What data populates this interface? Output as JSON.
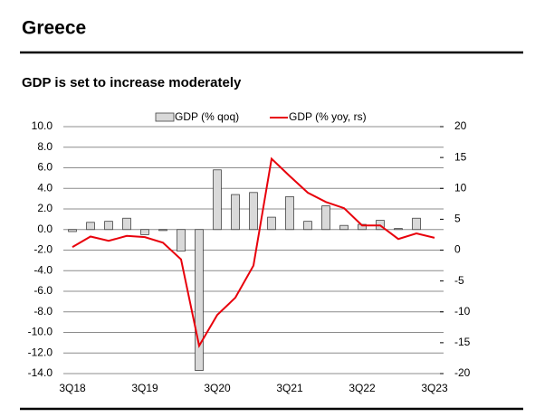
{
  "page": {
    "title": "Greece"
  },
  "chart_data": {
    "type": "bar",
    "title": "GDP is set to increase moderately",
    "categories": [
      "3Q18",
      null,
      null,
      null,
      "3Q19",
      null,
      null,
      null,
      "3Q20",
      null,
      null,
      null,
      "3Q21",
      null,
      null,
      null,
      "3Q22",
      null,
      null,
      null,
      "3Q23"
    ],
    "series": [
      {
        "name": "GDP (% qoq)",
        "type": "bar",
        "color": "#d9d9d9",
        "stroke": "#404040",
        "values": [
          -0.2,
          0.7,
          0.8,
          1.1,
          -0.5,
          -0.1,
          -2.1,
          -13.7,
          5.8,
          3.4,
          3.6,
          1.2,
          3.2,
          0.8,
          2.3,
          0.4,
          0.5,
          0.9,
          0.1,
          1.1,
          null
        ]
      },
      {
        "name": "GDP (% yoy, rs)",
        "type": "line",
        "axis": "y2",
        "color": "#e8000b",
        "values": [
          0.5,
          2.2,
          1.5,
          2.3,
          2.1,
          1.2,
          -1.5,
          -15.5,
          -10.5,
          -7.7,
          -2.5,
          14.8,
          12.0,
          9.3,
          7.8,
          6.8,
          4.0,
          4.0,
          1.8,
          2.7,
          2.0
        ]
      }
    ],
    "ylim": [
      -14,
      10
    ],
    "yticks": [
      {
        "value": 10,
        "label": "10.0"
      },
      {
        "value": 8,
        "label": "8.0"
      },
      {
        "value": 6,
        "label": "6.0"
      },
      {
        "value": 4,
        "label": "4.0"
      },
      {
        "value": 2,
        "label": "2.0"
      },
      {
        "value": 0,
        "label": "0.0"
      },
      {
        "value": -2,
        "label": "-2.0"
      },
      {
        "value": -4,
        "label": "-4.0"
      },
      {
        "value": -6,
        "label": "-6.0"
      },
      {
        "value": -8,
        "label": "-8.0"
      },
      {
        "value": -10,
        "label": "-10.0"
      },
      {
        "value": -12,
        "label": "-12.0"
      },
      {
        "value": -14,
        "label": "-14.0"
      }
    ],
    "y2lim": [
      -20,
      20
    ],
    "y2ticks": [
      20,
      15,
      10,
      5,
      0,
      -5,
      -10,
      -15,
      -20
    ],
    "grid": true,
    "legend": "top"
  }
}
